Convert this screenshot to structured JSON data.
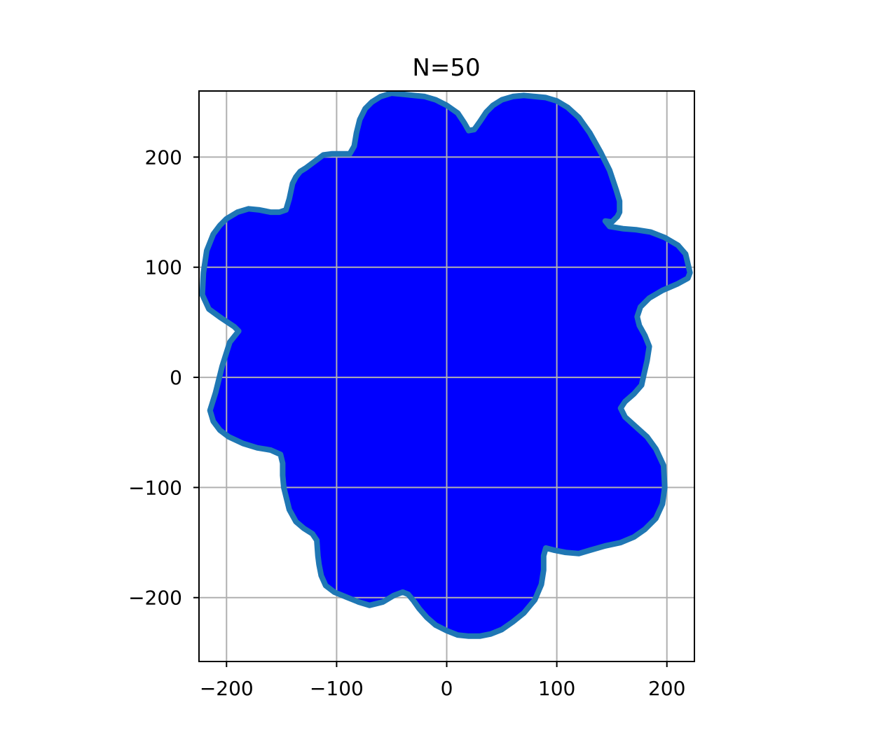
{
  "chart_data": {
    "type": "area",
    "title": "N=50",
    "xlabel": "",
    "ylabel": "",
    "xlim": [
      -225,
      225
    ],
    "ylim": [
      -258,
      260
    ],
    "grid": true,
    "x_ticks": [
      -200,
      -100,
      0,
      100,
      200
    ],
    "y_ticks": [
      -200,
      -100,
      0,
      100,
      200
    ],
    "x_tick_labels": [
      "−200",
      "−100",
      "0",
      "100",
      "200"
    ],
    "y_tick_labels": [
      "−200",
      "−100",
      "0",
      "100",
      "200"
    ],
    "fill_color": "#0000ff",
    "line_color": "#1f77b4",
    "grid_color": "#b0b0b0",
    "series": [
      {
        "x": [
          -221,
          -218,
          -212,
          -206,
          -200,
          -190,
          -180,
          -170,
          -160,
          -152,
          -146,
          -143,
          -140,
          -137,
          -133,
          -128,
          -120,
          -112,
          -104,
          -96,
          -88,
          -84,
          -82,
          -79,
          -74,
          -68,
          -60,
          -50,
          -40,
          -30,
          -20,
          -10,
          0,
          10,
          16,
          20,
          25,
          30,
          36,
          42,
          50,
          60,
          70,
          80,
          90,
          100,
          110,
          120,
          130,
          140,
          148,
          154,
          157,
          157,
          155,
          150,
          144,
          148,
          160,
          172,
          185,
          198,
          210,
          217,
          221,
          219,
          210,
          196,
          184,
          176,
          173,
          175,
          180,
          184,
          182,
          179,
          177,
          170,
          162,
          158,
          162,
          172,
          182,
          190,
          197,
          198,
          196,
          190,
          180,
          170,
          158,
          144,
          130,
          120,
          108,
          98,
          90,
          88,
          88,
          86,
          80,
          70,
          60,
          50,
          40,
          30,
          20,
          10,
          0,
          -10,
          -18,
          -25,
          -30,
          -35,
          -40,
          -48,
          -58,
          -70,
          -80,
          -90,
          -102,
          -110,
          -114,
          -116,
          -117,
          -118,
          -122,
          -130,
          -137,
          -143,
          -148,
          -149,
          -149,
          -151,
          -160,
          -172,
          -185,
          -198,
          -206,
          -212,
          -215,
          -210,
          -204,
          -197,
          -189,
          -193,
          -205,
          -216,
          -222
        ],
        "y": [
          95,
          115,
          130,
          138,
          144,
          150,
          153,
          152,
          150,
          150,
          152,
          162,
          176,
          182,
          187,
          190,
          196,
          202,
          203,
          203,
          203,
          210,
          222,
          234,
          244,
          250,
          255,
          258,
          257,
          256,
          255,
          252,
          247,
          240,
          231,
          224,
          225,
          232,
          241,
          247,
          252,
          255,
          256,
          255,
          254,
          251,
          245,
          236,
          222,
          204,
          188,
          170,
          160,
          150,
          146,
          141,
          142,
          137,
          135,
          134,
          132,
          127,
          120,
          112,
          95,
          90,
          85,
          79,
          72,
          64,
          55,
          47,
          38,
          28,
          15,
          2,
          -7,
          -15,
          -22,
          -28,
          -36,
          -45,
          -54,
          -65,
          -80,
          -100,
          -115,
          -128,
          -138,
          -145,
          -150,
          -153,
          -157,
          -160,
          -159,
          -157,
          -155,
          -162,
          -175,
          -188,
          -202,
          -214,
          -222,
          -229,
          -233,
          -235,
          -235,
          -234,
          -230,
          -225,
          -218,
          -210,
          -203,
          -197,
          -195,
          -198,
          -204,
          -207,
          -204,
          -200,
          -195,
          -189,
          -180,
          -170,
          -162,
          -148,
          -142,
          -137,
          -131,
          -120,
          -100,
          -89,
          -78,
          -70,
          -66,
          -64,
          -60,
          -54,
          -48,
          -40,
          -30,
          -14,
          10,
          32,
          42,
          46,
          54,
          62,
          75
        ]
      }
    ]
  }
}
